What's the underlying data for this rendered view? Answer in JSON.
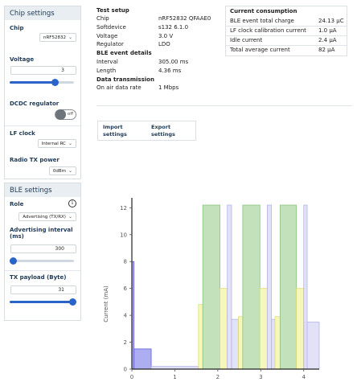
{
  "sidebar": {
    "chip_settings": {
      "title": "Chip settings",
      "chip": {
        "label": "Chip",
        "value": "nRF52832"
      },
      "voltage": {
        "label": "Voltage",
        "value": "3",
        "fraction": 0.7
      },
      "dcdc": {
        "label": "DCDC regulator",
        "state": "off"
      },
      "lf_clock": {
        "label": "LF clock",
        "value": "Internal RC"
      },
      "radio_tx_power": {
        "label": "Radio TX power",
        "value": "0dBm"
      }
    },
    "ble_settings": {
      "title": "BLE settings",
      "role": {
        "label": "Role",
        "value": "Advertising (TX/RX)",
        "info_icon": "info-icon"
      },
      "adv_interval": {
        "label": "Advertising interval (ms)",
        "value": "300",
        "fraction": 0.05
      },
      "tx_payload": {
        "label": "TX payload (Byte)",
        "value": "31",
        "fraction": 1.0
      }
    }
  },
  "test_setup": {
    "title": "Test setup",
    "rows": [
      {
        "label": "Chip",
        "value": "nRF52832 QFAAE0"
      },
      {
        "label": "Softdevice",
        "value": "s132 6.1.0"
      },
      {
        "label": "Voltage",
        "value": "3.0 V"
      },
      {
        "label": "Regulator",
        "value": "LDO"
      }
    ],
    "ble_event": {
      "title": "BLE event details",
      "rows": [
        {
          "label": "Interval",
          "value": "305.00 ms"
        },
        {
          "label": "Length",
          "value": "4.36 ms"
        }
      ]
    },
    "data_transmission": {
      "title": "Data transmission",
      "rows": [
        {
          "label": "On air data rate",
          "value": "1 Mbps"
        }
      ]
    }
  },
  "current_consumption": {
    "title": "Current consumption",
    "rows": [
      {
        "label": "BLE event total charge",
        "value": "24.13 µC"
      },
      {
        "label": "LF clock calibration current",
        "value": "1.0 µA"
      },
      {
        "label": "Idle current",
        "value": "2.4 µA"
      },
      {
        "label": "Total average current",
        "value": "82 µA"
      }
    ]
  },
  "actions": {
    "import_label": "Import settings",
    "export_label": "Export settings"
  },
  "chart_data": {
    "type": "bar",
    "ylabel": "Current (mA)",
    "xlim": [
      0,
      4.36
    ],
    "ylim": [
      0,
      12.5
    ],
    "x_ticks": [
      "0",
      "1",
      "2",
      "3",
      "4"
    ],
    "y_ticks": [
      "0",
      "2",
      "4",
      "6",
      "8",
      "10",
      "12"
    ],
    "colors": {
      "blue": "#9f9fee",
      "blue_edge": "#5e5ee0",
      "lavender": "#dcdcf6",
      "lavender_edge": "#b4b4e6",
      "yellow": "#f6f6b0",
      "yellow_edge": "#dede70",
      "green": "#b9ddb0",
      "green_edge": "#8cc47e"
    },
    "segments": [
      {
        "x0": 0.0,
        "x1": 0.05,
        "y": 8.0,
        "color": "blue"
      },
      {
        "x0": 0.05,
        "x1": 0.45,
        "y": 1.5,
        "color": "blue"
      },
      {
        "x0": 0.45,
        "x1": 1.55,
        "y": 0.2,
        "color": "lavender"
      },
      {
        "x0": 1.55,
        "x1": 1.65,
        "y": 4.8,
        "color": "yellow"
      },
      {
        "x0": 1.65,
        "x1": 2.05,
        "y": 12.2,
        "color": "green"
      },
      {
        "x0": 2.05,
        "x1": 2.22,
        "y": 6.0,
        "color": "yellow"
      },
      {
        "x0": 2.22,
        "x1": 2.32,
        "y": 12.2,
        "color": "lavender"
      },
      {
        "x0": 2.32,
        "x1": 2.48,
        "y": 3.7,
        "color": "lavender"
      },
      {
        "x0": 2.48,
        "x1": 2.58,
        "y": 3.9,
        "color": "yellow"
      },
      {
        "x0": 2.58,
        "x1": 2.98,
        "y": 12.2,
        "color": "green"
      },
      {
        "x0": 2.98,
        "x1": 3.15,
        "y": 6.0,
        "color": "yellow"
      },
      {
        "x0": 3.15,
        "x1": 3.25,
        "y": 12.2,
        "color": "lavender"
      },
      {
        "x0": 3.25,
        "x1": 3.33,
        "y": 3.7,
        "color": "lavender"
      },
      {
        "x0": 3.33,
        "x1": 3.45,
        "y": 3.9,
        "color": "yellow"
      },
      {
        "x0": 3.45,
        "x1": 3.83,
        "y": 12.2,
        "color": "green"
      },
      {
        "x0": 3.83,
        "x1": 4.0,
        "y": 6.0,
        "color": "yellow"
      },
      {
        "x0": 4.0,
        "x1": 4.36,
        "y": 3.5,
        "color": "lavender"
      },
      {
        "x0": 4.0,
        "x1": 4.08,
        "y": 12.2,
        "color": "lavender"
      }
    ]
  }
}
